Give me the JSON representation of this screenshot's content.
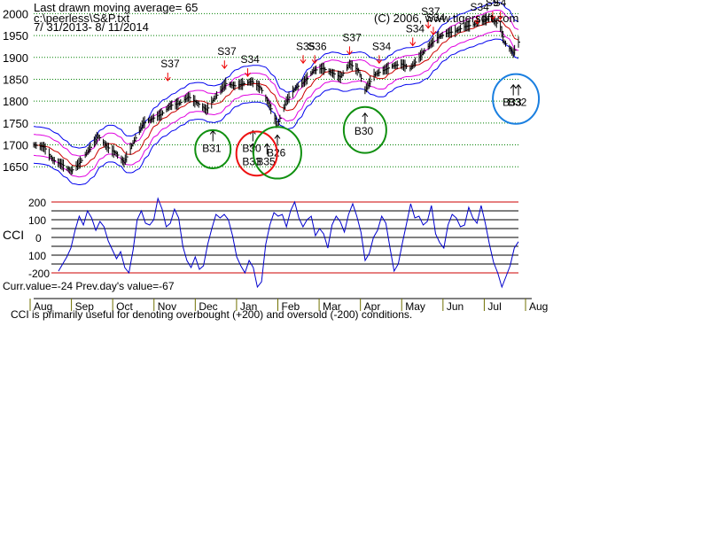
{
  "header": {
    "line1": "Last drawn moving average= 65",
    "line2": "c:\\peerless\\S&P.txt",
    "line3": "7/ 31/2013- 8/ 11/2014",
    "copyright": "(C) 2006, www.tigersoft.com"
  },
  "footer": {
    "current": "Curr.value=-24 Prev.day's value=-67",
    "note": "CCI is primarily useful for denoting overbought (+200) and oversold (-200) conditions."
  },
  "colors": {
    "price_bar": "#000000",
    "ma_red": "#cc0000",
    "band_magenta": "#e000e0",
    "band_blue": "#0000ee",
    "cci_line": "#0000cc",
    "cci_extreme": "#cc0000",
    "gridline": "#008000",
    "sell_arrow": "#ee0000",
    "circle_green": "#109010",
    "circle_red": "#ee1010",
    "circle_blue": "#1a7fe0"
  },
  "chart_data": [
    {
      "type": "line",
      "name": "price",
      "yticks": [
        2000,
        1950,
        1900,
        1850,
        1800,
        1750,
        1700,
        1650
      ],
      "ylim": [
        1620,
        2015
      ],
      "months": [
        "Aug",
        "Sep",
        "Oct",
        "Nov",
        "Dec",
        "Jan",
        "Feb",
        "Mar",
        "Apr",
        "May",
        "Jun",
        "Jul",
        "Aug"
      ],
      "x_range": [
        "2013-07-31",
        "2014-08-11"
      ],
      "grid": true,
      "price_closes": [
        {
          "date": "2013-07-31",
          "close": 1700
        },
        {
          "date": "2013-08-08",
          "close": 1695
        },
        {
          "date": "2013-08-15",
          "close": 1665
        },
        {
          "date": "2013-08-22",
          "close": 1655
        },
        {
          "date": "2013-08-29",
          "close": 1640
        },
        {
          "date": "2013-09-05",
          "close": 1660
        },
        {
          "date": "2013-09-12",
          "close": 1690
        },
        {
          "date": "2013-09-19",
          "close": 1720
        },
        {
          "date": "2013-09-26",
          "close": 1695
        },
        {
          "date": "2013-10-03",
          "close": 1680
        },
        {
          "date": "2013-10-09",
          "close": 1660
        },
        {
          "date": "2013-10-17",
          "close": 1710
        },
        {
          "date": "2013-10-24",
          "close": 1750
        },
        {
          "date": "2013-10-31",
          "close": 1760
        },
        {
          "date": "2013-11-07",
          "close": 1770
        },
        {
          "date": "2013-11-14",
          "close": 1790
        },
        {
          "date": "2013-11-21",
          "close": 1795
        },
        {
          "date": "2013-11-28",
          "close": 1810
        },
        {
          "date": "2013-12-05",
          "close": 1795
        },
        {
          "date": "2013-12-12",
          "close": 1780
        },
        {
          "date": "2013-12-19",
          "close": 1810
        },
        {
          "date": "2013-12-27",
          "close": 1840
        },
        {
          "date": "2014-01-03",
          "close": 1835
        },
        {
          "date": "2014-01-10",
          "close": 1840
        },
        {
          "date": "2014-01-16",
          "close": 1845
        },
        {
          "date": "2014-01-23",
          "close": 1830
        },
        {
          "date": "2014-01-30",
          "close": 1790
        },
        {
          "date": "2014-02-05",
          "close": 1745
        },
        {
          "date": "2014-02-12",
          "close": 1800
        },
        {
          "date": "2014-02-19",
          "close": 1830
        },
        {
          "date": "2014-02-26",
          "close": 1845
        },
        {
          "date": "2014-03-05",
          "close": 1870
        },
        {
          "date": "2014-03-12",
          "close": 1875
        },
        {
          "date": "2014-03-19",
          "close": 1865
        },
        {
          "date": "2014-03-26",
          "close": 1855
        },
        {
          "date": "2014-04-02",
          "close": 1885
        },
        {
          "date": "2014-04-09",
          "close": 1870
        },
        {
          "date": "2014-04-14",
          "close": 1825
        },
        {
          "date": "2014-04-21",
          "close": 1860
        },
        {
          "date": "2014-04-28",
          "close": 1870
        },
        {
          "date": "2014-05-05",
          "close": 1880
        },
        {
          "date": "2014-05-12",
          "close": 1885
        },
        {
          "date": "2014-05-19",
          "close": 1875
        },
        {
          "date": "2014-05-26",
          "close": 1900
        },
        {
          "date": "2014-06-02",
          "close": 1925
        },
        {
          "date": "2014-06-09",
          "close": 1945
        },
        {
          "date": "2014-06-16",
          "close": 1955
        },
        {
          "date": "2014-06-23",
          "close": 1960
        },
        {
          "date": "2014-06-30",
          "close": 1970
        },
        {
          "date": "2014-07-07",
          "close": 1975
        },
        {
          "date": "2014-07-14",
          "close": 1985
        },
        {
          "date": "2014-07-21",
          "close": 1990
        },
        {
          "date": "2014-07-28",
          "close": 1970
        },
        {
          "date": "2014-07-31",
          "close": 1935
        },
        {
          "date": "2014-08-07",
          "close": 1910
        },
        {
          "date": "2014-08-11",
          "close": 1935
        }
      ],
      "sell_signals": [
        {
          "label": "S37",
          "date": "2013-11-12",
          "value": 1865
        },
        {
          "label": "S37",
          "date": "2013-12-26",
          "value": 1893
        },
        {
          "label": "S34",
          "date": "2014-01-13",
          "value": 1875
        },
        {
          "label": "S35",
          "date": "2014-02-25",
          "value": 1905
        },
        {
          "label": "S36",
          "date": "2014-03-06",
          "value": 1905
        },
        {
          "label": "S37",
          "date": "2014-04-02",
          "value": 1925
        },
        {
          "label": "S34",
          "date": "2014-04-25",
          "value": 1905
        },
        {
          "label": "S34",
          "date": "2014-05-21",
          "value": 1945
        },
        {
          "label": "S37",
          "date": "2014-06-02",
          "value": 1985
        },
        {
          "label": "S34",
          "date": "2014-06-06",
          "value": 1970
        },
        {
          "label": "S34",
          "date": "2014-07-10",
          "value": 1995
        },
        {
          "label": "S9",
          "date": "2014-07-22",
          "value": 2005
        },
        {
          "label": "S4",
          "date": "2014-07-28",
          "value": 2005
        }
      ],
      "buy_signals": [
        {
          "label": "B31",
          "date": "2013-12-17",
          "value": 1700
        },
        {
          "label": "B30",
          "date": "2014-01-17",
          "value": 1700
        },
        {
          "label": "B33",
          "date": "2014-01-17",
          "value": 1670
        },
        {
          "label": "B35",
          "date": "2014-01-28",
          "value": 1670
        },
        {
          "label": "B26",
          "date": "2014-02-05",
          "value": 1690
        },
        {
          "label": "B30",
          "date": "2014-04-14",
          "value": 1740
        },
        {
          "label": "B33",
          "date": "2014-08-07",
          "value": 1805
        },
        {
          "label": "B32",
          "date": "2014-08-11",
          "value": 1805
        }
      ]
    },
    {
      "type": "line",
      "name": "CCI",
      "ylabel": "CCI",
      "yticks": [
        "200",
        "100",
        "0",
        "100",
        "-200"
      ],
      "ylim": [
        -260,
        260
      ],
      "values": [
        -190,
        -150,
        -110,
        -60,
        40,
        120,
        70,
        150,
        110,
        40,
        90,
        60,
        -20,
        -70,
        -120,
        -80,
        -170,
        -200,
        -70,
        100,
        150,
        80,
        70,
        100,
        220,
        160,
        60,
        80,
        160,
        110,
        -50,
        -130,
        -170,
        -110,
        -180,
        -160,
        -40,
        50,
        130,
        110,
        130,
        100,
        10,
        -110,
        -160,
        -200,
        -130,
        -170,
        -280,
        -250,
        -40,
        70,
        140,
        120,
        130,
        60,
        150,
        200,
        110,
        60,
        100,
        120,
        10,
        50,
        20,
        -60,
        70,
        120,
        90,
        30,
        130,
        190,
        120,
        30,
        -130,
        -90,
        0,
        40,
        120,
        80,
        -60,
        -190,
        -150,
        -30,
        80,
        190,
        110,
        120,
        70,
        90,
        180,
        20,
        -30,
        -60,
        70,
        130,
        110,
        60,
        70,
        170,
        110,
        80,
        180,
        80,
        -40,
        -140,
        -200,
        -280,
        -220,
        -160,
        -60,
        -24
      ]
    }
  ]
}
